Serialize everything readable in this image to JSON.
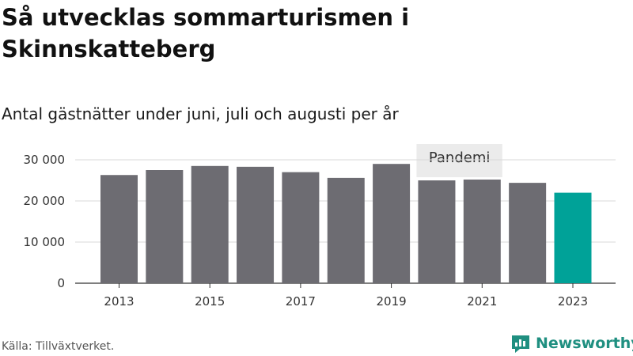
{
  "header": {
    "title": "Så utvecklas sommarturismen i Skinnskatteberg",
    "subtitle": "Antal gästnätter under juni, juli och augusti per år"
  },
  "footer": {
    "source": "Källa: Tillväxtverket.",
    "brand": "Newsworthy"
  },
  "colors": {
    "bar": "#6d6c72",
    "highlight": "#00a298",
    "pandemic_band": "#ebebeb",
    "grid": "#d9d9d9",
    "brand": "#1f8f80"
  },
  "icons": {
    "logo": "newsworthy-chart-bubble-icon"
  },
  "chart_data": {
    "type": "bar",
    "title": "Så utvecklas sommarturismen i Skinnskatteberg",
    "subtitle": "Antal gästnätter under juni, juli och augusti per år",
    "categories": [
      "2013",
      "2014",
      "2015",
      "2016",
      "2017",
      "2018",
      "2019",
      "2020",
      "2021",
      "2022",
      "2023"
    ],
    "values": [
      26300,
      27500,
      28500,
      28300,
      27000,
      25600,
      29000,
      25000,
      25200,
      24400,
      22000
    ],
    "highlight_category": "2023",
    "x_tick_labels": [
      "2013",
      "2015",
      "2017",
      "2019",
      "2021",
      "2023"
    ],
    "y_ticks": [
      0,
      10000,
      20000,
      30000
    ],
    "y_tick_labels": [
      "0",
      "10 000",
      "20 000",
      "30 000"
    ],
    "ylim": [
      0,
      30000
    ],
    "xlabel": "",
    "ylabel": "",
    "grid": true,
    "annotation": {
      "text": "Pandemi",
      "from": "2020",
      "to": "2021"
    }
  }
}
